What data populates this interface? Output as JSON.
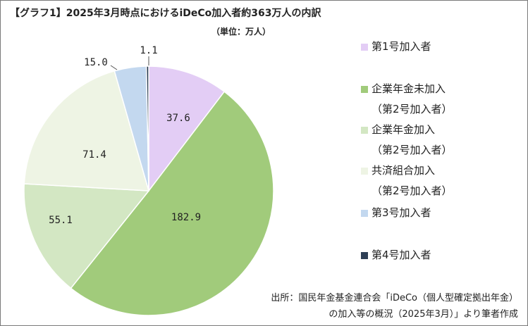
{
  "chart_data": {
    "type": "pie",
    "title": "【グラフ1】2025年3月時点におけるiDeCo加入者約363万人の内訳",
    "unit_label": "（単位：万人）",
    "slices": [
      {
        "label": "第1号加入者",
        "label_line2": "",
        "value": 37.6,
        "display": "37.6",
        "color": "#e3cdf5"
      },
      {
        "label": "企業年金未加入",
        "label_line2": "（第2号加入者）",
        "value": 182.9,
        "display": "182.9",
        "color": "#a1cb7b"
      },
      {
        "label": "企業年金加入",
        "label_line2": "（第2号加入者）",
        "value": 55.1,
        "display": "55.1",
        "color": "#d3e7c3"
      },
      {
        "label": "共済組合加入",
        "label_line2": "（第2号加入者）",
        "value": 71.4,
        "display": "71.4",
        "color": "#eef4e4"
      },
      {
        "label": "第3号加入者",
        "label_line2": "",
        "value": 15.0,
        "display": "15.0",
        "color": "#c3d8ef"
      },
      {
        "label": "第4号加入者",
        "label_line2": "",
        "value": 1.1,
        "display": "1.1",
        "color": "#2e3f55"
      }
    ],
    "legend_position": "right",
    "start_angle": "12 o'clock, clockwise"
  },
  "source": {
    "line1": "出所：国民年金基金連合会「iDeCo（個人型確定拠出年金）",
    "line2": "の加入等の概況（2025年3月）」より筆者作成"
  }
}
